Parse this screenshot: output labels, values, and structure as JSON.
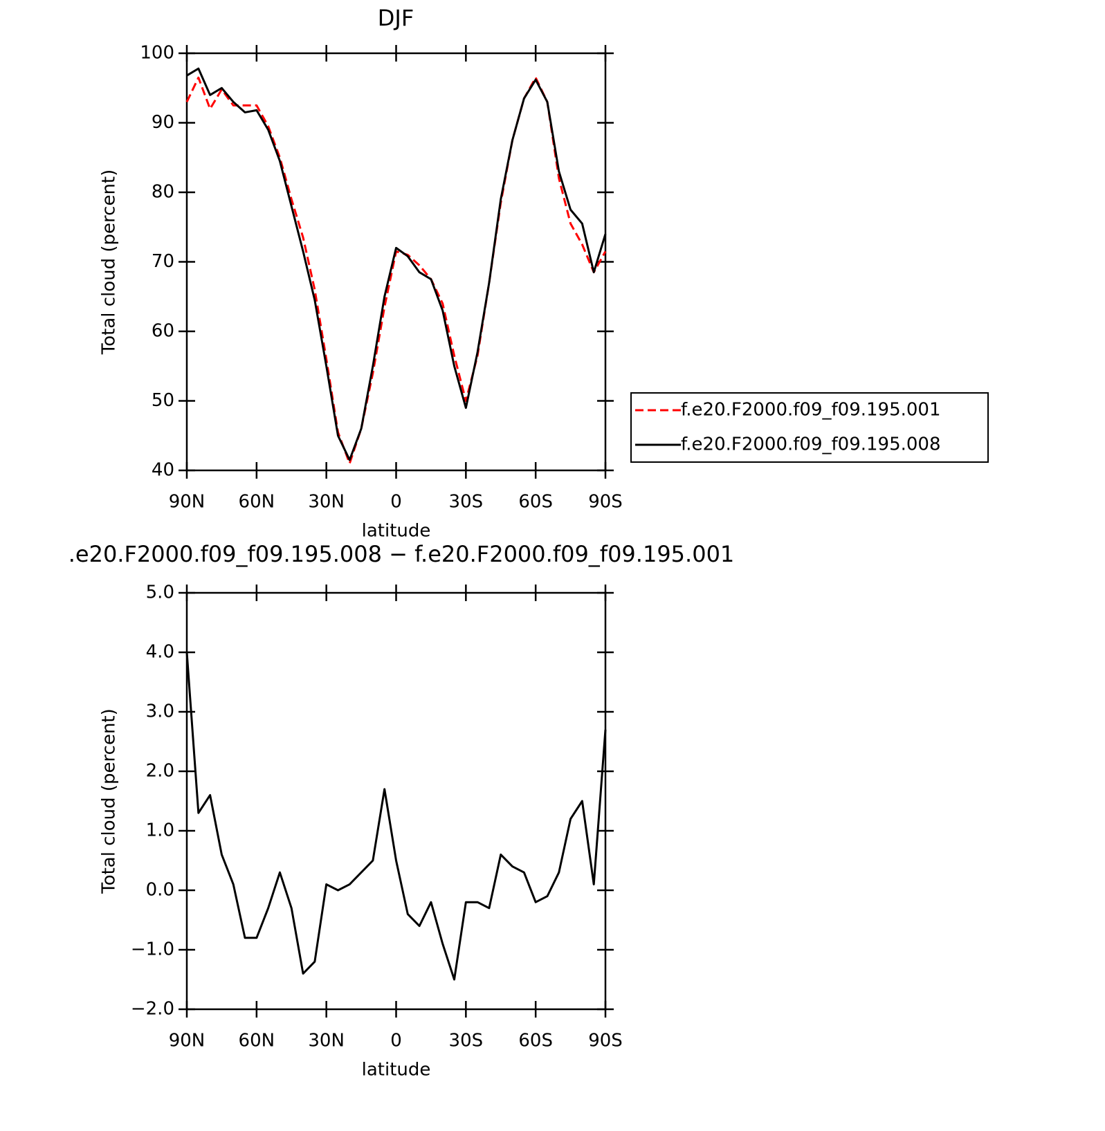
{
  "chart_data": [
    {
      "type": "line",
      "title": "DJF",
      "xlabel": "latitude",
      "ylabel": "Total cloud (percent)",
      "x": [
        90,
        85,
        80,
        75,
        70,
        65,
        60,
        55,
        50,
        45,
        40,
        35,
        30,
        25,
        20,
        15,
        10,
        5,
        0,
        -5,
        -10,
        -15,
        -20,
        -25,
        -30,
        -35,
        -40,
        -45,
        -50,
        -55,
        -60,
        -65,
        -70,
        -75,
        -80,
        -85,
        -90
      ],
      "xlim": [
        90,
        -90
      ],
      "xticks": [
        {
          "value": 90,
          "label": "90N"
        },
        {
          "value": 60,
          "label": "60N"
        },
        {
          "value": 30,
          "label": "30N"
        },
        0,
        {
          "value": -30,
          "label": "30S"
        },
        {
          "value": -60,
          "label": "60S"
        },
        {
          "value": -90,
          "label": "90S"
        }
      ],
      "ylim": [
        40,
        100
      ],
      "yticks": [
        40,
        50,
        60,
        70,
        80,
        90,
        100
      ],
      "legend": "right",
      "series": [
        {
          "name": "f.e20.F2000.f09_f09.195.001",
          "color": "#ff0000",
          "dashed": true,
          "values": [
            93,
            96.5,
            92,
            94.8,
            92.5,
            92.5,
            92.5,
            89.5,
            85,
            79,
            73.5,
            66,
            56,
            45.5,
            41,
            46,
            54,
            63.5,
            71.5,
            71,
            69.5,
            67.5,
            64,
            56.5,
            50,
            56.5,
            67,
            78.5,
            87.5,
            93.5,
            96.5,
            93,
            82,
            75.5,
            72.5,
            68.5,
            71.5
          ]
        },
        {
          "name": "f.e20.F2000.f09_f09.195.008",
          "color": "#000000",
          "dashed": false,
          "values": [
            96.8,
            97.8,
            94,
            95,
            93,
            91.5,
            91.8,
            89,
            84.5,
            78,
            71.5,
            64.5,
            55,
            45,
            41.5,
            46,
            55,
            65,
            72,
            70.8,
            68.5,
            67.5,
            63,
            55,
            49,
            57,
            67,
            79,
            87.5,
            93.5,
            96.2,
            93,
            83,
            77.5,
            75.5,
            68.5,
            74
          ]
        }
      ]
    },
    {
      "type": "line",
      "title": ".e20.F2000.f09_f09.195.008 − f.e20.F2000.f09_f09.195.001",
      "xlabel": "latitude",
      "ylabel": "Total cloud (percent)",
      "x": [
        90,
        85,
        80,
        75,
        70,
        65,
        60,
        55,
        50,
        45,
        40,
        35,
        30,
        25,
        20,
        15,
        10,
        5,
        0,
        -5,
        -10,
        -15,
        -20,
        -25,
        -30,
        -35,
        -40,
        -45,
        -50,
        -55,
        -60,
        -65,
        -70,
        -75,
        -80,
        -85,
        -90
      ],
      "xlim": [
        90,
        -90
      ],
      "xticks": [
        {
          "value": 90,
          "label": "90N"
        },
        {
          "value": 60,
          "label": "60N"
        },
        {
          "value": 30,
          "label": "30N"
        },
        0,
        {
          "value": -30,
          "label": "30S"
        },
        {
          "value": -60,
          "label": "60S"
        },
        {
          "value": -90,
          "label": "90S"
        }
      ],
      "ylim": [
        -2,
        5
      ],
      "yticks": [
        {
          "value": -2,
          "label": "−2.0"
        },
        {
          "value": -1,
          "label": "−1.0"
        },
        {
          "value": 0,
          "label": "0.0"
        },
        {
          "value": 1,
          "label": "1.0"
        },
        {
          "value": 2,
          "label": "2.0"
        },
        {
          "value": 3,
          "label": "3.0"
        },
        {
          "value": 4,
          "label": "4.0"
        },
        {
          "value": 5,
          "label": "5.0"
        }
      ],
      "series": [
        {
          "color": "#000000",
          "dashed": false,
          "values": [
            4.0,
            1.3,
            1.6,
            0.6,
            0.1,
            -0.8,
            -0.8,
            -0.3,
            0.3,
            -0.3,
            -1.4,
            -1.2,
            0.1,
            0.0,
            0.1,
            0.3,
            0.5,
            1.7,
            0.5,
            -0.4,
            -0.6,
            -0.2,
            -0.9,
            -1.5,
            -0.2,
            -0.2,
            -0.3,
            0.6,
            0.4,
            0.3,
            -0.2,
            -0.1,
            0.3,
            1.2,
            1.5,
            0.1,
            2.7
          ]
        }
      ]
    }
  ]
}
